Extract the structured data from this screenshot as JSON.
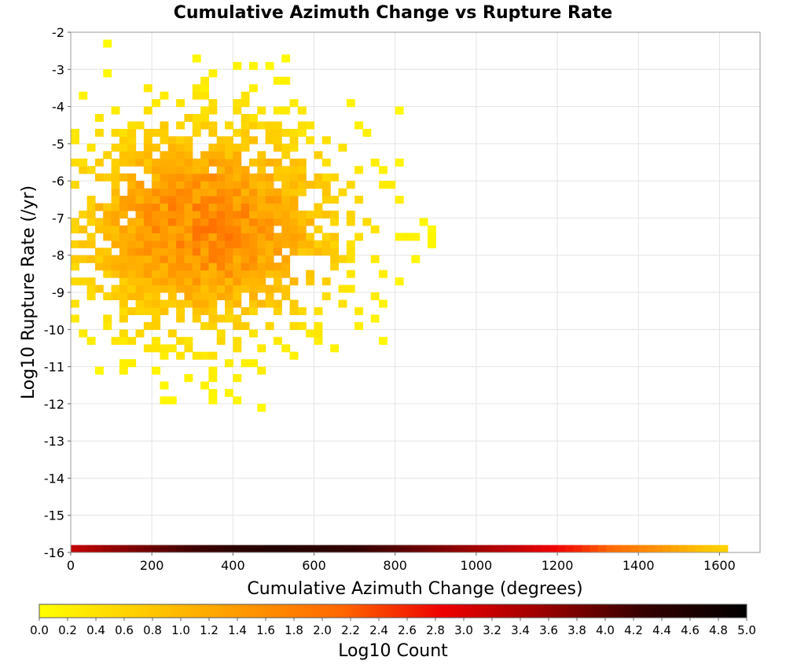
{
  "chart_data": {
    "type": "heatmap",
    "title": "Cumulative Azimuth Change vs Rupture Rate",
    "xlabel": "Cumulative Azimuth Change (degrees)",
    "ylabel": "Log10 Rupture Rate (/yr)",
    "xlim": [
      0,
      1700
    ],
    "ylim": [
      -16,
      -2
    ],
    "x_ticks": [
      0,
      200,
      400,
      600,
      800,
      1000,
      1200,
      1400,
      1600
    ],
    "y_ticks": [
      -2,
      -3,
      -4,
      -5,
      -6,
      -7,
      -8,
      -9,
      -10,
      -11,
      -12,
      -13,
      -14,
      -15,
      -16
    ],
    "grid": true,
    "bin_width_x": 20,
    "bin_height_y": 0.2,
    "core_density": {
      "x_center": 330,
      "x_sigma": 240,
      "y_center": -7.2,
      "y_sigma": 2.0,
      "peak_log10_count": 1.65
    },
    "bottom_row": {
      "y": -15.9,
      "x_extent": [
        0,
        1620
      ],
      "log10_count_profile": [
        [
          0,
          3.2
        ],
        [
          100,
          3.6
        ],
        [
          300,
          4.2
        ],
        [
          500,
          4.5
        ],
        [
          700,
          4.3
        ],
        [
          900,
          3.8
        ],
        [
          1100,
          3.2
        ],
        [
          1250,
          2.6
        ],
        [
          1350,
          2.0
        ],
        [
          1450,
          1.5
        ],
        [
          1550,
          0.9
        ],
        [
          1620,
          0.6
        ]
      ]
    },
    "colorbar": {
      "label": "Log10 Count",
      "range": [
        0,
        5
      ],
      "ticks": [
        "0.0",
        "0.2",
        "0.4",
        "0.6",
        "0.8",
        "1.0",
        "1.2",
        "1.4",
        "1.6",
        "1.8",
        "2.0",
        "2.2",
        "2.4",
        "2.6",
        "2.8",
        "3.0",
        "3.2",
        "3.4",
        "3.6",
        "3.8",
        "4.0",
        "4.2",
        "4.4",
        "4.6",
        "4.8",
        "5.0"
      ],
      "colors": [
        "#ffff00",
        "#ffcc00",
        "#ff9900",
        "#ff6600",
        "#ee0000",
        "#990000",
        "#330000",
        "#000000"
      ]
    }
  }
}
